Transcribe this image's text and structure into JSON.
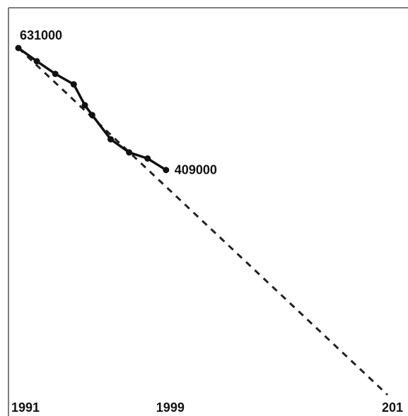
{
  "chart_data": {
    "type": "line",
    "x_ticks": [
      "1991",
      "1999",
      "201"
    ],
    "xlim": [
      1991,
      2011
    ],
    "ylim": [
      0,
      631000
    ],
    "grid": false,
    "series": [
      {
        "style": "solid",
        "color": "#111111",
        "markers": true,
        "points": [
          {
            "x": 1991.0,
            "y": 631000
          },
          {
            "x": 1992.0,
            "y": 607000
          },
          {
            "x": 1993.0,
            "y": 584000
          },
          {
            "x": 1994.0,
            "y": 565000
          },
          {
            "x": 1994.6,
            "y": 527000
          },
          {
            "x": 1995.0,
            "y": 509000
          },
          {
            "x": 1996.0,
            "y": 465000
          },
          {
            "x": 1997.0,
            "y": 441000
          },
          {
            "x": 1998.0,
            "y": 430000
          },
          {
            "x": 1999.0,
            "y": 409000
          }
        ]
      },
      {
        "style": "dashed",
        "color": "#222222",
        "markers": false,
        "points": [
          {
            "x": 1991.0,
            "y": 631000
          },
          {
            "x": 2011.0,
            "y": 0
          }
        ]
      }
    ],
    "data_labels": [
      {
        "text": "631000",
        "x": 1991,
        "y": 631000
      },
      {
        "text": "409000",
        "x": 1999,
        "y": 409000
      }
    ]
  }
}
